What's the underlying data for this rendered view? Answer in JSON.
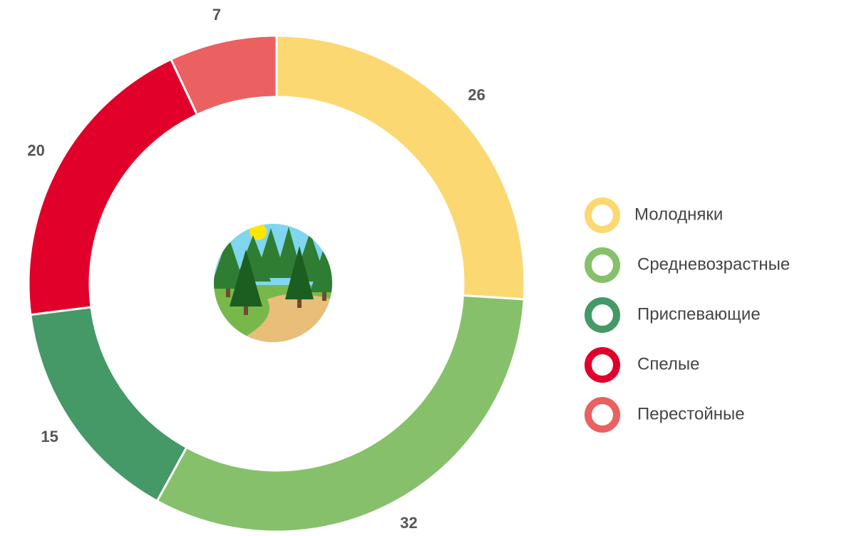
{
  "chart_data": {
    "type": "donut",
    "categories": [
      "Молодняки",
      "Средневозрастные",
      "Приспевающие",
      "Спелые",
      "Перестойные"
    ],
    "values": [
      26,
      32,
      15,
      20,
      7
    ],
    "colors": [
      "#fbd872",
      "#87c06a",
      "#449966",
      "#e0002a",
      "#eb6060"
    ],
    "legend": "right"
  }
}
